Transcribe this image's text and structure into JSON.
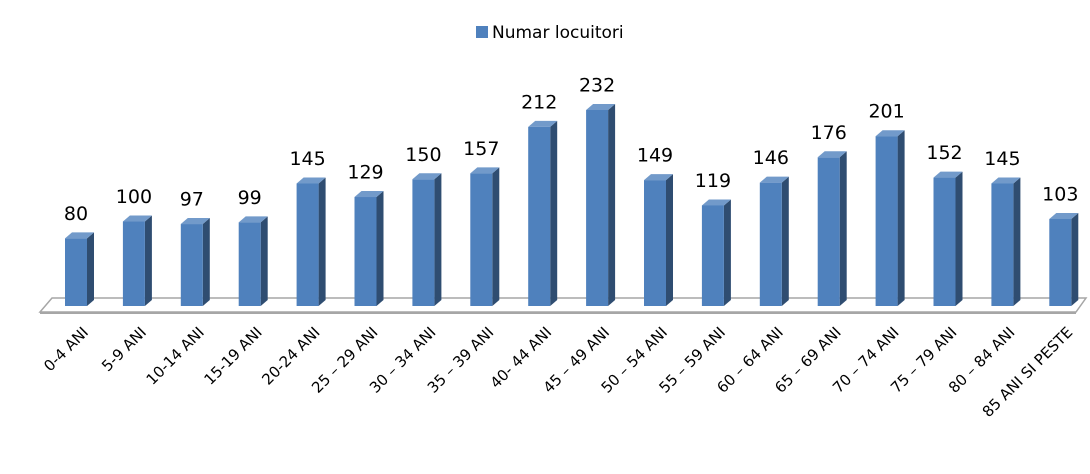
{
  "chart_data": {
    "type": "bar3d",
    "series": [
      {
        "name": "Numar locuitori",
        "color": "#4f81bd",
        "values": [
          80,
          100,
          97,
          99,
          145,
          129,
          150,
          157,
          212,
          232,
          149,
          119,
          146,
          176,
          201,
          152,
          145,
          103
        ]
      }
    ],
    "categories": [
      "0-4 ANI",
      "5-9 ANI",
      "10-14 ANI",
      "15-19 ANI",
      "20-24 ANI",
      "25 – 29 ANI",
      "30 – 34 ANI",
      "35 – 39 ANI",
      "40- 44 ANI",
      "45 – 49 ANI",
      "50 – 54 ANI",
      "55 – 59 ANI",
      "60 – 64 ANI",
      "65 – 69 ANI",
      "70 – 74 ANI",
      "75 – 79 ANI",
      "80 – 84 ANI",
      "85 ANI SI PESTE"
    ],
    "legend": "top"
  }
}
